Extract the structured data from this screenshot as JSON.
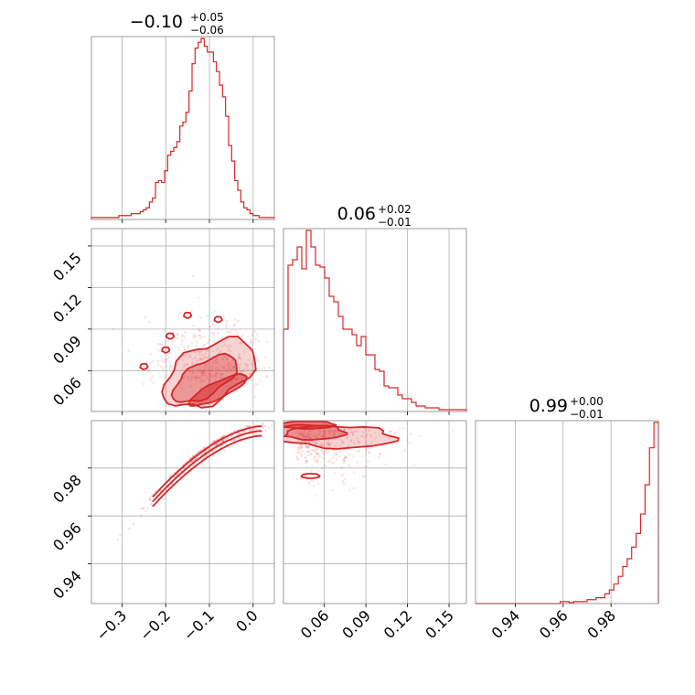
{
  "colors": {
    "accent": "#d62728",
    "grid": "#b0b0b0",
    "frame": "#808080"
  },
  "chart_data": {
    "type": "corner",
    "grid": true,
    "parameters": [
      {
        "title": {
          "median": "−0.10",
          "plus": "+0.05",
          "minus": "−0.06"
        },
        "range": [
          -0.37,
          0.0485
        ],
        "ticks": [
          -0.3,
          -0.2,
          -0.1,
          0.0
        ],
        "tick_labels": [
          "−0.3",
          "−0.2",
          "−0.1",
          "0.0"
        ],
        "histogram": [
          1,
          1,
          1,
          1,
          1,
          1,
          1,
          1,
          1,
          2,
          2,
          2,
          2,
          3,
          3,
          3,
          4,
          5,
          6,
          9,
          11,
          19,
          20,
          19,
          25,
          33,
          35,
          37,
          40,
          48,
          50,
          55,
          66,
          80,
          88,
          91,
          93,
          89,
          86,
          86,
          81,
          76,
          69,
          63,
          53,
          38,
          30,
          20,
          15,
          9,
          6,
          5,
          3,
          2,
          2,
          1,
          1,
          1,
          1,
          1
        ]
      },
      {
        "title": {
          "median": "0.06",
          "plus": "+0.02",
          "minus": "−0.01"
        },
        "range": [
          0.0305,
          0.1625
        ],
        "ticks": [
          0.06,
          0.09,
          0.12,
          0.15
        ],
        "tick_labels": [
          "0.06",
          "0.09",
          "0.12",
          "0.15"
        ],
        "histogram": [
          45,
          80,
          83,
          90,
          78,
          99,
          90,
          80,
          79,
          73,
          63,
          60,
          52,
          45,
          45,
          42,
          36,
          41,
          31,
          31,
          23,
          22,
          14,
          13,
          13,
          9,
          7,
          7,
          5,
          3,
          3,
          2,
          2,
          2,
          1,
          1,
          1,
          1,
          1,
          1
        ]
      },
      {
        "title": {
          "median": "0.99",
          "plus": "+0.00",
          "minus": "−0.01"
        },
        "range": [
          0.9234,
          0.9998
        ],
        "ticks": [
          0.94,
          0.96,
          0.98
        ],
        "tick_labels": [
          "0.94",
          "0.96",
          "0.98"
        ],
        "histogram": [
          0,
          0,
          0,
          0,
          0,
          0,
          0,
          0,
          0,
          0,
          0,
          0,
          0,
          0,
          0,
          0,
          0,
          0,
          0,
          1,
          1,
          0.5,
          1,
          1,
          1,
          2,
          2,
          3,
          3,
          5,
          7,
          10,
          14,
          19,
          23,
          29,
          36,
          46,
          61,
          80,
          93
        ]
      }
    ]
  }
}
